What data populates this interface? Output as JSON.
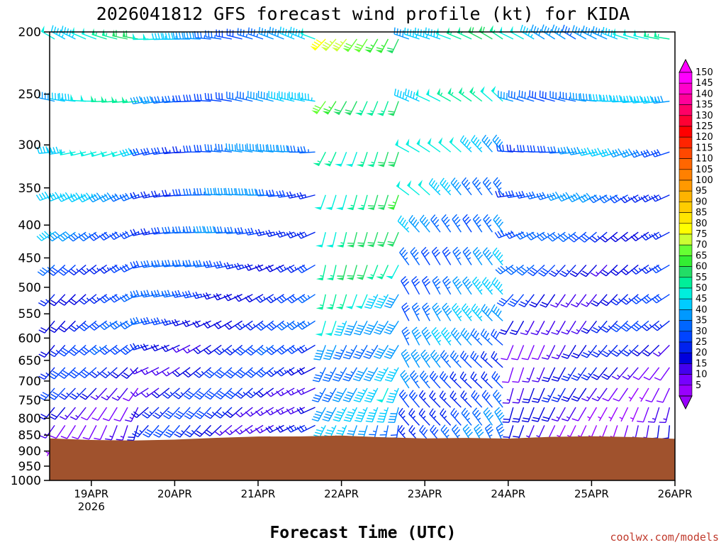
{
  "chart_data": {
    "type": "wind-barb-time-height",
    "title": "2026041812 GFS forecast wind profile (kt) for KIDA",
    "xlabel": "Forecast Time (UTC)",
    "ylabel": "",
    "credit": "coolwx.com/models",
    "x_ticks": [
      {
        "label": "19APR",
        "sublabel": "2026",
        "day": 0.5
      },
      {
        "label": "20APR",
        "sublabel": "",
        "day": 1.5
      },
      {
        "label": "21APR",
        "sublabel": "",
        "day": 2.5
      },
      {
        "label": "22APR",
        "sublabel": "",
        "day": 3.5
      },
      {
        "label": "23APR",
        "sublabel": "",
        "day": 4.5
      },
      {
        "label": "24APR",
        "sublabel": "",
        "day": 5.5
      },
      {
        "label": "25APR",
        "sublabel": "",
        "day": 6.5
      },
      {
        "label": "26APR",
        "sublabel": "",
        "day": 7.5
      }
    ],
    "x_range_days": [
      0,
      7.5
    ],
    "y_ticks": [
      "200",
      "250",
      "300",
      "350",
      "400",
      "450",
      "500",
      "550",
      "600",
      "650",
      "700",
      "750",
      "800",
      "850",
      "900",
      "950",
      "1000"
    ],
    "y_range_hPa": [
      200,
      1000
    ],
    "y_scale": "log-pressure",
    "levels_hPa": [
      200,
      250,
      300,
      350,
      400,
      450,
      500,
      550,
      600,
      650,
      700,
      750,
      800,
      850,
      875
    ],
    "ground_level_hPa": 860,
    "ground_color": "#a0522d",
    "colorbar": {
      "labels": [
        "150",
        "145",
        "140",
        "135",
        "130",
        "125",
        "120",
        "115",
        "110",
        "105",
        "100",
        "95",
        "90",
        "85",
        "80",
        "75",
        "70",
        "65",
        "60",
        "55",
        "50",
        "45",
        "40",
        "35",
        "30",
        "25",
        "20",
        "15",
        "10",
        "5"
      ],
      "colors": [
        "#ff00ff",
        "#ff00cc",
        "#ff0099",
        "#ff0066",
        "#ff0033",
        "#ff0000",
        "#ff2400",
        "#ff4800",
        "#ff6600",
        "#ff8000",
        "#ff9900",
        "#ffb300",
        "#ffcc00",
        "#ffe600",
        "#ffff00",
        "#ccff33",
        "#66ff33",
        "#33ee33",
        "#22dd66",
        "#00ee99",
        "#00eedd",
        "#00ccff",
        "#0099ff",
        "#0066ff",
        "#0044ff",
        "#0022ee",
        "#0000dd",
        "#4400ee",
        "#7700ff",
        "#9900ff"
      ],
      "placement": "right"
    },
    "profile_segments": [
      {
        "from_day": 0.0,
        "to_day": 1.1,
        "upper_speed_kt": 55,
        "upper_dir_deg": 290,
        "lower_speed_kt": 15,
        "lower_dir_deg": 200
      },
      {
        "from_day": 1.1,
        "to_day": 3.2,
        "upper_speed_kt": 40,
        "upper_dir_deg": 280,
        "lower_speed_kt": 20,
        "lower_dir_deg": 230
      },
      {
        "from_day": 3.2,
        "to_day": 4.3,
        "upper_speed_kt": 70,
        "upper_dir_deg": 215,
        "lower_speed_kt": 35,
        "lower_dir_deg": 195
      },
      {
        "from_day": 4.3,
        "to_day": 5.5,
        "upper_speed_kt": 50,
        "upper_dir_deg": 300,
        "lower_speed_kt": 30,
        "lower_dir_deg": 330
      },
      {
        "from_day": 5.5,
        "to_day": 7.5,
        "upper_speed_kt": 45,
        "upper_dir_deg": 290,
        "lower_speed_kt": 10,
        "lower_dir_deg": 190
      }
    ]
  }
}
